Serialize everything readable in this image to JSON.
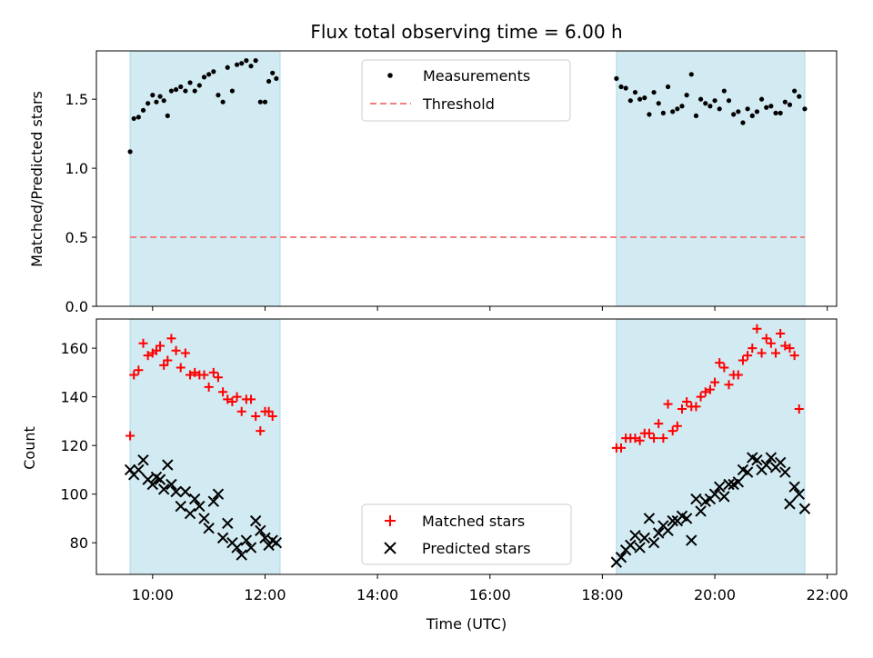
{
  "chart_data": [
    {
      "type": "scatter",
      "title": "Flux total observing time = 6.00 h",
      "ylabel": "Matched/Predicted stars",
      "xlabel": "",
      "xlim": [
        "09:00",
        "22:10"
      ],
      "ylim": [
        0,
        1.85
      ],
      "xticks": [
        "10:00",
        "12:00",
        "14:00",
        "16:00",
        "18:00",
        "20:00",
        "22:00"
      ],
      "yticks": [
        0.0,
        0.5,
        1.0,
        1.5
      ],
      "ytick_labels": [
        "0.0",
        "0.5",
        "1.0",
        "1.5"
      ],
      "grid": false,
      "legend_position": "top-center",
      "shaded_windows": [
        {
          "start": "09:36",
          "end": "12:16",
          "color": "#add8e6"
        },
        {
          "start": "18:15",
          "end": "21:36",
          "color": "#add8e6"
        }
      ],
      "series": [
        {
          "name": "Measurements",
          "marker": "dot",
          "color": "#000000",
          "points": [
            [
              "09:36",
              1.12
            ],
            [
              "09:40",
              1.36
            ],
            [
              "09:45",
              1.37
            ],
            [
              "09:50",
              1.42
            ],
            [
              "09:55",
              1.47
            ],
            [
              "10:00",
              1.53
            ],
            [
              "10:04",
              1.48
            ],
            [
              "10:08",
              1.52
            ],
            [
              "10:12",
              1.49
            ],
            [
              "10:16",
              1.38
            ],
            [
              "10:20",
              1.56
            ],
            [
              "10:25",
              1.57
            ],
            [
              "10:30",
              1.59
            ],
            [
              "10:35",
              1.56
            ],
            [
              "10:40",
              1.62
            ],
            [
              "10:45",
              1.56
            ],
            [
              "10:50",
              1.6
            ],
            [
              "10:55",
              1.66
            ],
            [
              "11:00",
              1.68
            ],
            [
              "11:05",
              1.7
            ],
            [
              "11:10",
              1.53
            ],
            [
              "11:15",
              1.48
            ],
            [
              "11:20",
              1.73
            ],
            [
              "11:25",
              1.56
            ],
            [
              "11:30",
              1.75
            ],
            [
              "11:35",
              1.76
            ],
            [
              "11:40",
              1.78
            ],
            [
              "11:45",
              1.74
            ],
            [
              "11:50",
              1.78
            ],
            [
              "11:55",
              1.48
            ],
            [
              "12:00",
              1.48
            ],
            [
              "12:04",
              1.63
            ],
            [
              "12:08",
              1.69
            ],
            [
              "12:12",
              1.65
            ],
            [
              "18:15",
              1.65
            ],
            [
              "18:20",
              1.59
            ],
            [
              "18:25",
              1.58
            ],
            [
              "18:30",
              1.49
            ],
            [
              "18:35",
              1.55
            ],
            [
              "18:40",
              1.5
            ],
            [
              "18:45",
              1.51
            ],
            [
              "18:50",
              1.39
            ],
            [
              "18:55",
              1.55
            ],
            [
              "19:00",
              1.47
            ],
            [
              "19:05",
              1.4
            ],
            [
              "19:10",
              1.59
            ],
            [
              "19:15",
              1.41
            ],
            [
              "19:20",
              1.43
            ],
            [
              "19:25",
              1.45
            ],
            [
              "19:30",
              1.53
            ],
            [
              "19:35",
              1.68
            ],
            [
              "19:40",
              1.38
            ],
            [
              "19:45",
              1.5
            ],
            [
              "19:50",
              1.47
            ],
            [
              "19:55",
              1.45
            ],
            [
              "20:00",
              1.49
            ],
            [
              "20:05",
              1.43
            ],
            [
              "20:10",
              1.56
            ],
            [
              "20:15",
              1.49
            ],
            [
              "20:20",
              1.39
            ],
            [
              "20:25",
              1.41
            ],
            [
              "20:30",
              1.33
            ],
            [
              "20:35",
              1.43
            ],
            [
              "20:40",
              1.38
            ],
            [
              "20:45",
              1.41
            ],
            [
              "20:50",
              1.5
            ],
            [
              "20:55",
              1.44
            ],
            [
              "21:00",
              1.45
            ],
            [
              "21:05",
              1.4
            ],
            [
              "21:10",
              1.4
            ],
            [
              "21:15",
              1.48
            ],
            [
              "21:20",
              1.46
            ],
            [
              "21:25",
              1.56
            ],
            [
              "21:30",
              1.52
            ],
            [
              "21:36",
              1.43
            ]
          ]
        },
        {
          "name": "Threshold",
          "marker": "dashed-line",
          "color": "#f08080",
          "points": [
            [
              "09:36",
              0.5
            ],
            [
              "21:36",
              0.5
            ]
          ]
        }
      ]
    },
    {
      "type": "scatter",
      "title": "",
      "ylabel": "Count",
      "xlabel": "Time (UTC)",
      "xlim": [
        "09:00",
        "22:10"
      ],
      "ylim": [
        67,
        172
      ],
      "xticks": [
        "10:00",
        "12:00",
        "14:00",
        "16:00",
        "18:00",
        "20:00",
        "22:00"
      ],
      "xtick_labels": [
        "10:00",
        "12:00",
        "14:00",
        "16:00",
        "18:00",
        "20:00",
        "22:00"
      ],
      "yticks": [
        80,
        100,
        120,
        140,
        160
      ],
      "ytick_labels": [
        "80",
        "100",
        "120",
        "140",
        "160"
      ],
      "grid": false,
      "legend_position": "bottom-center",
      "shaded_windows": [
        {
          "start": "09:36",
          "end": "12:16",
          "color": "#add8e6"
        },
        {
          "start": "18:15",
          "end": "21:36",
          "color": "#add8e6"
        }
      ],
      "series": [
        {
          "name": "Matched stars",
          "marker": "plus",
          "color": "#ff0000",
          "points": [
            [
              "09:36",
              124
            ],
            [
              "09:40",
              149
            ],
            [
              "09:45",
              151
            ],
            [
              "09:50",
              162
            ],
            [
              "09:55",
              157
            ],
            [
              "10:00",
              158
            ],
            [
              "10:04",
              159
            ],
            [
              "10:08",
              161
            ],
            [
              "10:12",
              153
            ],
            [
              "10:16",
              155
            ],
            [
              "10:20",
              164
            ],
            [
              "10:25",
              159
            ],
            [
              "10:30",
              152
            ],
            [
              "10:35",
              158
            ],
            [
              "10:40",
              149
            ],
            [
              "10:45",
              150
            ],
            [
              "10:50",
              149
            ],
            [
              "10:55",
              149
            ],
            [
              "11:00",
              144
            ],
            [
              "11:05",
              150
            ],
            [
              "11:10",
              148
            ],
            [
              "11:15",
              142
            ],
            [
              "11:20",
              139
            ],
            [
              "11:25",
              138
            ],
            [
              "11:30",
              140
            ],
            [
              "11:35",
              134
            ],
            [
              "11:40",
              139
            ],
            [
              "11:45",
              139
            ],
            [
              "11:50",
              132
            ],
            [
              "11:55",
              126
            ],
            [
              "12:00",
              134
            ],
            [
              "12:04",
              134
            ],
            [
              "12:08",
              132
            ],
            [
              "18:15",
              119
            ],
            [
              "18:20",
              119
            ],
            [
              "18:25",
              123
            ],
            [
              "18:30",
              123
            ],
            [
              "18:35",
              123
            ],
            [
              "18:40",
              122
            ],
            [
              "18:45",
              125
            ],
            [
              "18:50",
              125
            ],
            [
              "18:55",
              123
            ],
            [
              "19:00",
              129
            ],
            [
              "19:05",
              123
            ],
            [
              "19:10",
              137
            ],
            [
              "19:15",
              126
            ],
            [
              "19:20",
              128
            ],
            [
              "19:25",
              135
            ],
            [
              "19:30",
              138
            ],
            [
              "19:35",
              136
            ],
            [
              "19:40",
              136
            ],
            [
              "19:45",
              140
            ],
            [
              "19:50",
              142
            ],
            [
              "19:55",
              143
            ],
            [
              "20:00",
              146
            ],
            [
              "20:05",
              154
            ],
            [
              "20:10",
              152
            ],
            [
              "20:15",
              145
            ],
            [
              "20:20",
              149
            ],
            [
              "20:25",
              149
            ],
            [
              "20:30",
              155
            ],
            [
              "20:35",
              157
            ],
            [
              "20:40",
              160
            ],
            [
              "20:45",
              168
            ],
            [
              "20:50",
              158
            ],
            [
              "20:55",
              164
            ],
            [
              "21:00",
              162
            ],
            [
              "21:05",
              158
            ],
            [
              "21:10",
              166
            ],
            [
              "21:15",
              161
            ],
            [
              "21:20",
              160
            ],
            [
              "21:25",
              157
            ],
            [
              "21:30",
              135
            ]
          ]
        },
        {
          "name": "Predicted stars",
          "marker": "x",
          "color": "#000000",
          "points": [
            [
              "09:36",
              110
            ],
            [
              "09:40",
              108
            ],
            [
              "09:45",
              110
            ],
            [
              "09:50",
              114
            ],
            [
              "09:55",
              106
            ],
            [
              "10:00",
              104
            ],
            [
              "10:04",
              107
            ],
            [
              "10:08",
              106
            ],
            [
              "10:12",
              102
            ],
            [
              "10:16",
              112
            ],
            [
              "10:20",
              104
            ],
            [
              "10:25",
              101
            ],
            [
              "10:30",
              95
            ],
            [
              "10:35",
              101
            ],
            [
              "10:40",
              92
            ],
            [
              "10:45",
              98
            ],
            [
              "10:50",
              95
            ],
            [
              "10:55",
              90
            ],
            [
              "11:00",
              86
            ],
            [
              "11:05",
              97
            ],
            [
              "11:10",
              100
            ],
            [
              "11:15",
              82
            ],
            [
              "11:20",
              88
            ],
            [
              "11:25",
              80
            ],
            [
              "11:30",
              78
            ],
            [
              "11:35",
              75
            ],
            [
              "11:40",
              81
            ],
            [
              "11:45",
              78
            ],
            [
              "11:50",
              89
            ],
            [
              "11:55",
              85
            ],
            [
              "12:00",
              82
            ],
            [
              "12:04",
              79
            ],
            [
              "12:08",
              81
            ],
            [
              "12:12",
              80
            ],
            [
              "18:15",
              72
            ],
            [
              "18:20",
              74
            ],
            [
              "18:25",
              77
            ],
            [
              "18:30",
              79
            ],
            [
              "18:35",
              83
            ],
            [
              "18:40",
              78
            ],
            [
              "18:45",
              82
            ],
            [
              "18:50",
              90
            ],
            [
              "18:55",
              80
            ],
            [
              "19:00",
              84
            ],
            [
              "19:05",
              87
            ],
            [
              "19:10",
              85
            ],
            [
              "19:15",
              89
            ],
            [
              "19:20",
              89
            ],
            [
              "19:25",
              91
            ],
            [
              "19:30",
              90
            ],
            [
              "19:35",
              81
            ],
            [
              "19:40",
              98
            ],
            [
              "19:45",
              93
            ],
            [
              "19:50",
              97
            ],
            [
              "19:55",
              98
            ],
            [
              "20:00",
              100
            ],
            [
              "20:05",
              103
            ],
            [
              "20:10",
              99
            ],
            [
              "20:15",
              104
            ],
            [
              "20:20",
              104
            ],
            [
              "20:25",
              105
            ],
            [
              "20:30",
              110
            ],
            [
              "20:35",
              109
            ],
            [
              "20:40",
              115
            ],
            [
              "20:45",
              114
            ],
            [
              "20:50",
              110
            ],
            [
              "20:55",
              112
            ],
            [
              "21:00",
              115
            ],
            [
              "21:05",
              111
            ],
            [
              "21:10",
              113
            ],
            [
              "21:15",
              109
            ],
            [
              "21:20",
              96
            ],
            [
              "21:25",
              103
            ],
            [
              "21:30",
              100
            ],
            [
              "21:36",
              94
            ]
          ]
        }
      ]
    }
  ]
}
